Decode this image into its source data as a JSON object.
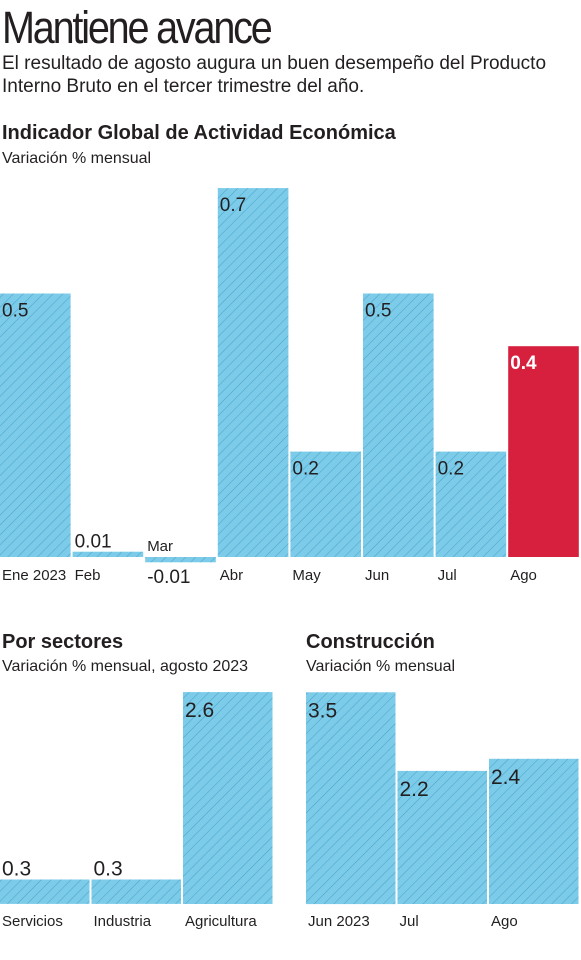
{
  "headline": "Mantiene avance",
  "subtitle": "El resultado de agosto augura un buen desempeño del Producto Interno Bruto en el tercer trimestre del año.",
  "colors": {
    "bar": "#7ccbe8",
    "hatch": "#4aa6cf",
    "highlight": "#d71f3e",
    "text": "#231f20"
  },
  "chart_data": [
    {
      "type": "bar",
      "title": "Indicador Global de Actividad Económica",
      "subtitle": "Variación % mensual",
      "categories": [
        "Ene 2023",
        "Feb",
        "Mar",
        "Abr",
        "May",
        "Jun",
        "Jul",
        "Ago"
      ],
      "values": [
        0.5,
        0.01,
        -0.01,
        0.7,
        0.2,
        0.5,
        0.2,
        0.4
      ],
      "value_labels": [
        "0.5",
        "0.01",
        "-0.01",
        "0.7",
        "0.2",
        "0.5",
        "0.2",
        "0.4"
      ],
      "highlight_index": 7,
      "grid": false
    },
    {
      "type": "bar",
      "title": "Por sectores",
      "subtitle": "Variación % mensual, agosto 2023",
      "categories": [
        "Servicios",
        "Industria",
        "Agricultura"
      ],
      "values": [
        0.3,
        0.3,
        2.6
      ],
      "value_labels": [
        "0.3",
        "0.3",
        "2.6"
      ],
      "grid": false
    },
    {
      "type": "bar",
      "title": "Construcción",
      "subtitle": "Variación % mensual",
      "categories": [
        "Jun 2023",
        "Jul",
        "Ago"
      ],
      "values": [
        3.5,
        2.2,
        2.4
      ],
      "value_labels": [
        "3.5",
        "2.2",
        "2.4"
      ],
      "grid": false
    }
  ]
}
